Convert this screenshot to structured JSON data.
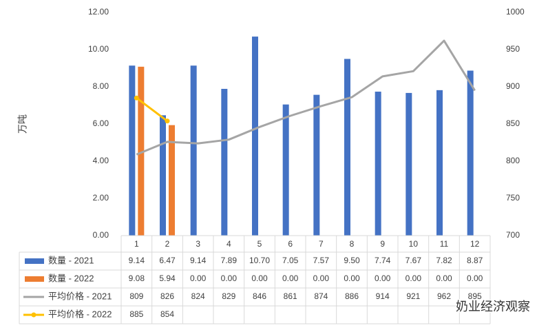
{
  "chart_data": {
    "type": "bar_line_table",
    "y_label": "万吨",
    "watermark": "奶业经济观察",
    "categories": [
      "1",
      "2",
      "3",
      "4",
      "5",
      "6",
      "7",
      "8",
      "9",
      "10",
      "11",
      "12"
    ],
    "ylim": [
      0,
      12
    ],
    "yticks": [
      {
        "value": 0,
        "label": "0.00"
      },
      {
        "value": 2,
        "label": "2.00"
      },
      {
        "value": 4,
        "label": "4.00"
      },
      {
        "value": 6,
        "label": "6.00"
      },
      {
        "value": 8,
        "label": "8.00"
      },
      {
        "value": 10,
        "label": "10.00"
      },
      {
        "value": 12,
        "label": "12.00"
      }
    ],
    "y2lim": [
      700,
      1000
    ],
    "y2ticks": [
      700,
      750,
      800,
      850,
      900,
      950,
      1000
    ],
    "series": [
      {
        "name": "数量 - 2021",
        "type": "bar",
        "color": "#4472c4",
        "values": [
          9.14,
          6.47,
          9.14,
          7.89,
          10.7,
          7.05,
          7.57,
          9.5,
          7.74,
          7.67,
          7.82,
          8.87
        ],
        "value_labels": [
          "9.14",
          "6.47",
          "9.14",
          "7.89",
          "10.70",
          "7.05",
          "7.57",
          "9.50",
          "7.74",
          "7.67",
          "7.82",
          "8.87"
        ]
      },
      {
        "name": "数量 - 2022",
        "type": "bar",
        "color": "#ed7d31",
        "values": [
          9.08,
          5.94,
          0,
          0,
          0,
          0,
          0,
          0,
          0,
          0,
          0,
          0
        ],
        "value_labels": [
          "9.08",
          "5.94",
          "0.00",
          "0.00",
          "0.00",
          "0.00",
          "0.00",
          "0.00",
          "0.00",
          "0.00",
          "0.00",
          "0.00"
        ]
      },
      {
        "name": "平均价格 - 2021",
        "type": "line",
        "axis": "y2",
        "color": "#a5a5a5",
        "values": [
          809,
          826,
          824,
          829,
          846,
          861,
          874,
          886,
          914,
          921,
          962,
          895
        ]
      },
      {
        "name": "平均价格 - 2022",
        "type": "line",
        "axis": "y2",
        "color": "#ffc000",
        "marker": true,
        "values": [
          885,
          854,
          null,
          null,
          null,
          null,
          null,
          null,
          null,
          null,
          null,
          null
        ]
      }
    ]
  }
}
